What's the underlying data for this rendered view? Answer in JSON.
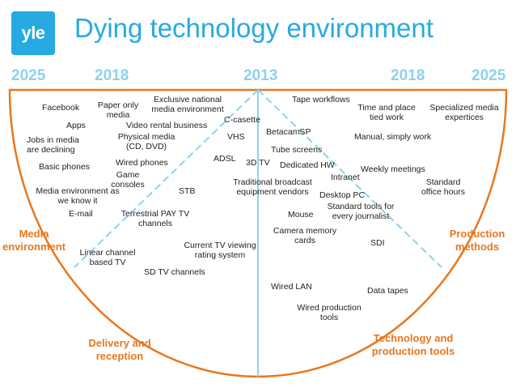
{
  "logo": {
    "text": "yle",
    "color": "#27aae1"
  },
  "title": "Dying technology environment",
  "colors": {
    "accent": "#27aae1",
    "axis": "#8fd1ee",
    "zone_label": "#e9771e",
    "semicircle": "#e9771e"
  },
  "years": {
    "far_left": "2025",
    "mid_left": "2018",
    "center": "2013",
    "mid_right": "2018",
    "far_right": "2025"
  },
  "zones": {
    "media_environment": "Media environment",
    "delivery_reception": "Delivery and reception",
    "technology_tools": "Technology and production tools",
    "production_methods": "Production methods"
  },
  "items": {
    "facebook": "Facebook",
    "paper_only_media": "Paper only media",
    "exclusive_national": "Exclusive national media environment",
    "apps": "Apps",
    "video_rental": "Video rental business",
    "c_casette": "C-casette",
    "jobs_declining": "Jobs in media are declining",
    "physical_media": "Physical media (CD, DVD)",
    "vhs": "VHS",
    "basic_phones": "Basic phones",
    "wired_phones": "Wired phones",
    "adsl": "ADSL",
    "three_d_tv": "3D TV",
    "game_consoles": "Game consoles",
    "media_env_as_we_know": "Media environment as we know it",
    "stb": "STB",
    "email": "E-mail",
    "terrestrial_pay_tv": "Terrestrial PAY TV channels",
    "linear_channel": "Linear channel based TV",
    "current_tv_viewing": "Current TV viewing rating system",
    "sd_tv_channels": "SD TV channels",
    "tape_workflows": "Tape workflows",
    "betacam_sp": "BetacamSP",
    "tube_screens": "Tube screens",
    "dedicated_hw": "Dedicated HW",
    "traditional_broadcast": "Traditional broadcast equipment vendors",
    "intranet": "Intranet",
    "desktop_pc": "Desktop PC",
    "mouse": "Mouse",
    "camera_memory": "Camera memory cards",
    "wired_lan": "Wired LAN",
    "wired_production": "Wired production tools",
    "time_place_tied": "Time and place tied work",
    "specialized_media": "Specialized media expertices",
    "manual_simply_work": "Manual, simply work",
    "weekly_meetings": "Weekly meetings",
    "standard_office_hours": "Standard office hours",
    "standard_tools": "Standard tools for every journalist",
    "sdi": "SDI",
    "data_tapes": "Data tapes"
  }
}
